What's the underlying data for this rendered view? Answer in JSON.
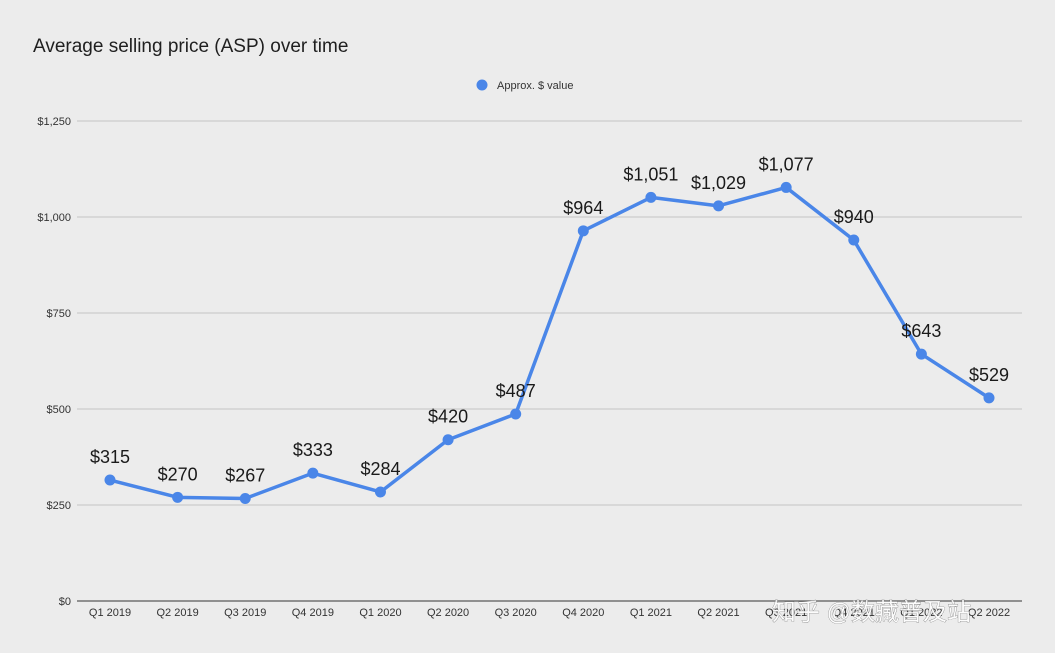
{
  "chart_data": {
    "type": "line",
    "title": "Average selling price (ASP) over time",
    "categories": [
      "Q1 2019",
      "Q2 2019",
      "Q3 2019",
      "Q4 2019",
      "Q1 2020",
      "Q2 2020",
      "Q3 2020",
      "Q4 2020",
      "Q1 2021",
      "Q2 2021",
      "Q3 2021",
      "Q4 2021",
      "Q1 2022",
      "Q2 2022"
    ],
    "series": [
      {
        "name": "Approx. $ value",
        "values": [
          315,
          270,
          267,
          333,
          284,
          420,
          487,
          964,
          1051,
          1029,
          1077,
          940,
          643,
          529
        ],
        "data_labels": [
          "$315",
          "$270",
          "$267",
          "$333",
          "$284",
          "$420",
          "$487",
          "$964",
          "$1,051",
          "$1,029",
          "$1,077",
          "$940",
          "$643",
          "$529"
        ]
      }
    ],
    "y_ticks": [
      0,
      250,
      500,
      750,
      1000,
      1250
    ],
    "y_tick_labels": [
      "$0",
      "$250",
      "$500",
      "$750",
      "$1,000",
      "$1,250"
    ],
    "ylim": [
      0,
      1250
    ],
    "xlabel": "",
    "ylabel": "",
    "grid": true,
    "legend_position": "top-center"
  },
  "colors": {
    "series": "#4a86e8",
    "background": "#ececec"
  },
  "watermark": {
    "text": "知乎 @数藏普及站"
  }
}
